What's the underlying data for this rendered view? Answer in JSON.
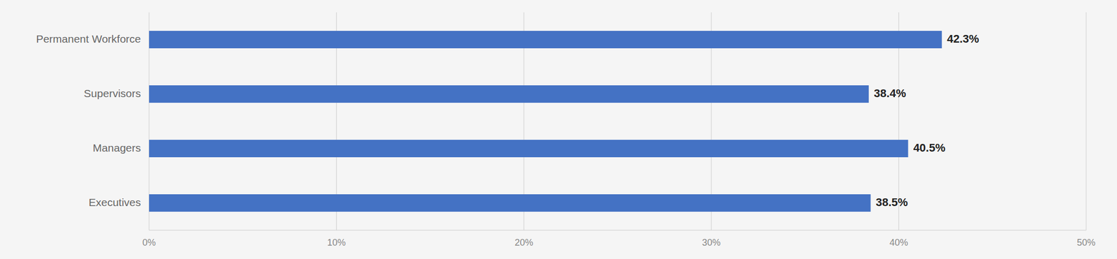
{
  "chart_data": {
    "type": "bar",
    "orientation": "horizontal",
    "categories": [
      "Permanent Workforce",
      "Supervisors",
      "Managers",
      "Executives"
    ],
    "values": [
      42.3,
      38.4,
      40.5,
      38.5
    ],
    "value_labels": [
      "42.3%",
      "38.4%",
      "40.5%",
      "38.5%"
    ],
    "data_labels": true,
    "color": "#4472C4",
    "xlim": [
      0,
      50
    ],
    "xticks": [
      {
        "value": 0,
        "label": "0%"
      },
      {
        "value": 10,
        "label": "10%"
      },
      {
        "value": 20,
        "label": "20%"
      },
      {
        "value": 30,
        "label": "30%"
      },
      {
        "value": 40,
        "label": "40%"
      },
      {
        "value": 50,
        "label": "50%"
      }
    ],
    "grid": true
  }
}
